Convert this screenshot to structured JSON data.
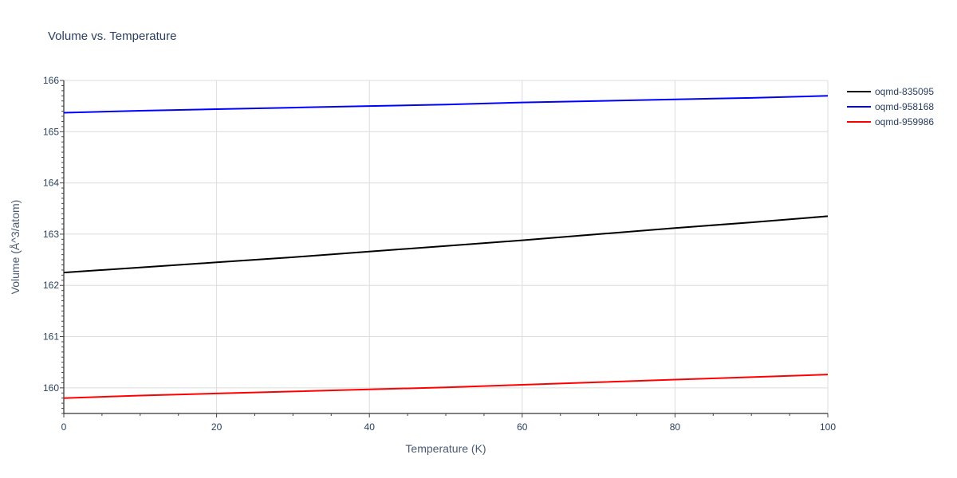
{
  "chart_data": {
    "type": "line",
    "title": "Volume vs. Temperature",
    "xlabel": "Temperature (K)",
    "ylabel": "Volume (Å^3/atom)",
    "xlim": [
      0,
      100
    ],
    "ylim": [
      159.5,
      166
    ],
    "xticks": [
      0,
      20,
      40,
      60,
      80,
      100
    ],
    "yticks": [
      160,
      161,
      162,
      163,
      164,
      165,
      166
    ],
    "grid": true,
    "legend_position": "top-right",
    "series": [
      {
        "name": "oqmd-835095",
        "color": "#000000",
        "x": [
          0,
          10,
          20,
          30,
          40,
          50,
          60,
          70,
          80,
          90,
          100
        ],
        "y": [
          162.25,
          162.35,
          162.45,
          162.55,
          162.66,
          162.77,
          162.88,
          163.0,
          163.12,
          163.23,
          163.35
        ]
      },
      {
        "name": "oqmd-958168",
        "color": "#0000ff",
        "x": [
          0,
          10,
          20,
          30,
          40,
          50,
          60,
          70,
          80,
          90,
          100
        ],
        "y": [
          165.37,
          165.41,
          165.44,
          165.47,
          165.5,
          165.53,
          165.57,
          165.6,
          165.63,
          165.66,
          165.7
        ]
      },
      {
        "name": "oqmd-959986",
        "color": "#ff0000",
        "x": [
          0,
          10,
          20,
          30,
          40,
          50,
          60,
          70,
          80,
          90,
          100
        ],
        "y": [
          159.8,
          159.85,
          159.89,
          159.93,
          159.97,
          160.01,
          160.06,
          160.11,
          160.16,
          160.21,
          160.26
        ]
      }
    ]
  }
}
